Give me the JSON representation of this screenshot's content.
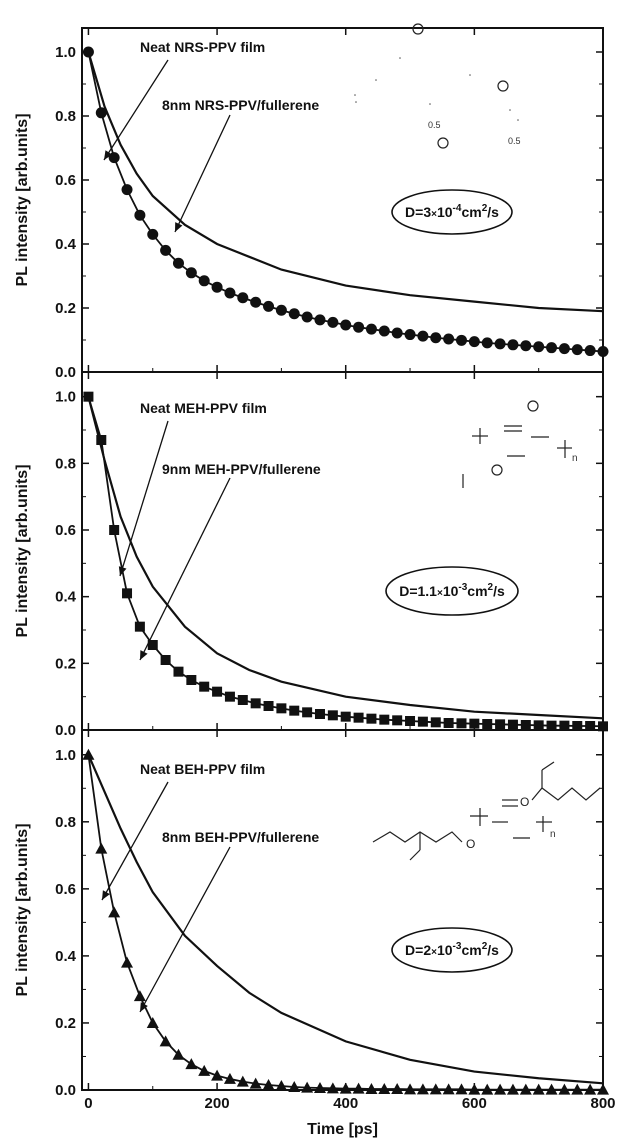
{
  "chart_data": [
    {
      "type": "line",
      "title": "",
      "xlabel": "",
      "ylabel": "PL intensity [arb.units]",
      "xlim": [
        -10,
        800
      ],
      "ylim": [
        0,
        1.05
      ],
      "xticks": [],
      "yticks": [
        "0.0",
        "0.2",
        "0.4",
        "0.6",
        "0.8",
        "1.0"
      ],
      "grid": false,
      "diffusion_label": {
        "prefix": "D=3",
        "mult": "×",
        "base": "10",
        "exp": "-4",
        "unit": "cm",
        "unit_exp": "2",
        "suffix": "/s"
      },
      "annotations": {
        "neat": "Neat NRS-PPV film",
        "blend": "8nm NRS-PPV/fullerene"
      },
      "structure_labels": [
        "0.5",
        "0.5"
      ],
      "series": [
        {
          "style": "line",
          "x": [
            0,
            25,
            50,
            75,
            100,
            150,
            200,
            250,
            300,
            400,
            500,
            600,
            700,
            800
          ],
          "values": [
            1.0,
            0.83,
            0.71,
            0.62,
            0.55,
            0.46,
            0.4,
            0.36,
            0.32,
            0.27,
            0.24,
            0.22,
            0.2,
            0.19
          ]
        },
        {
          "style": "circle",
          "x": [
            0,
            20,
            40,
            60,
            80,
            100,
            120,
            140,
            160,
            180,
            200,
            220,
            240,
            260,
            280,
            300,
            320,
            340,
            360,
            380,
            400,
            420,
            440,
            460,
            480,
            500,
            520,
            540,
            560,
            580,
            600,
            620,
            640,
            660,
            680,
            700,
            720,
            740,
            760,
            780,
            800
          ],
          "values": [
            1.0,
            0.81,
            0.67,
            0.57,
            0.49,
            0.43,
            0.38,
            0.34,
            0.31,
            0.285,
            0.265,
            0.247,
            0.232,
            0.218,
            0.205,
            0.193,
            0.182,
            0.172,
            0.163,
            0.155,
            0.147,
            0.14,
            0.134,
            0.128,
            0.122,
            0.117,
            0.112,
            0.107,
            0.103,
            0.099,
            0.095,
            0.091,
            0.088,
            0.085,
            0.082,
            0.079,
            0.076,
            0.073,
            0.07,
            0.067,
            0.064
          ]
        }
      ]
    },
    {
      "type": "line",
      "title": "",
      "xlabel": "",
      "ylabel": "PL intensity [arb.units]",
      "xlim": [
        -10,
        800
      ],
      "ylim": [
        0,
        1.05
      ],
      "xticks": [],
      "yticks": [
        "0.0",
        "0.2",
        "0.4",
        "0.6",
        "0.8",
        "1.0"
      ],
      "grid": false,
      "diffusion_label": {
        "prefix": "D=1.1",
        "mult": "×",
        "base": "10",
        "exp": "-3",
        "unit": "cm",
        "unit_exp": "2",
        "suffix": "/s"
      },
      "annotations": {
        "neat": "Neat MEH-PPV film",
        "blend": "9nm MEH-PPV/fullerene"
      },
      "structure_labels": [
        "n"
      ],
      "series": [
        {
          "style": "line",
          "x": [
            0,
            25,
            50,
            75,
            100,
            150,
            200,
            250,
            300,
            400,
            500,
            600,
            700,
            800
          ],
          "values": [
            1.0,
            0.81,
            0.64,
            0.52,
            0.43,
            0.31,
            0.23,
            0.18,
            0.145,
            0.1,
            0.075,
            0.055,
            0.045,
            0.035
          ]
        },
        {
          "style": "square",
          "x": [
            0,
            20,
            40,
            60,
            80,
            100,
            120,
            140,
            160,
            180,
            200,
            220,
            240,
            260,
            280,
            300,
            320,
            340,
            360,
            380,
            400,
            420,
            440,
            460,
            480,
            500,
            520,
            540,
            560,
            580,
            600,
            620,
            640,
            660,
            680,
            700,
            720,
            740,
            760,
            780,
            800
          ],
          "values": [
            1.0,
            0.87,
            0.6,
            0.41,
            0.31,
            0.255,
            0.21,
            0.175,
            0.15,
            0.13,
            0.115,
            0.1,
            0.09,
            0.08,
            0.072,
            0.065,
            0.058,
            0.053,
            0.048,
            0.044,
            0.04,
            0.037,
            0.034,
            0.031,
            0.029,
            0.027,
            0.025,
            0.023,
            0.021,
            0.02,
            0.019,
            0.018,
            0.017,
            0.016,
            0.015,
            0.014,
            0.013,
            0.013,
            0.012,
            0.012,
            0.011
          ]
        }
      ]
    },
    {
      "type": "line",
      "title": "",
      "xlabel": "Time [ps]",
      "ylabel": "PL intensity [arb.units]",
      "xlim": [
        -10,
        800
      ],
      "ylim": [
        0,
        1.05
      ],
      "xticks": [
        "0",
        "200",
        "400",
        "600",
        "800"
      ],
      "yticks": [
        "0.0",
        "0.2",
        "0.4",
        "0.6",
        "0.8",
        "1.0"
      ],
      "grid": false,
      "diffusion_label": {
        "prefix": "D=2",
        "mult": "×",
        "base": "10",
        "exp": "-3",
        "unit": "cm",
        "unit_exp": "2",
        "suffix": "/s"
      },
      "annotations": {
        "neat": "Neat BEH-PPV film",
        "blend": "8nm BEH-PPV/fullerene"
      },
      "structure_labels": [
        "O",
        "O",
        "n"
      ],
      "series": [
        {
          "style": "line",
          "x": [
            0,
            25,
            50,
            75,
            100,
            150,
            200,
            250,
            300,
            400,
            500,
            600,
            700,
            800
          ],
          "values": [
            1.0,
            0.89,
            0.78,
            0.68,
            0.59,
            0.46,
            0.37,
            0.29,
            0.23,
            0.145,
            0.09,
            0.055,
            0.035,
            0.02
          ]
        },
        {
          "style": "triangle",
          "x": [
            0,
            20,
            40,
            60,
            80,
            100,
            120,
            140,
            160,
            180,
            200,
            220,
            240,
            260,
            280,
            300,
            320,
            340,
            360,
            380,
            400,
            420,
            440,
            460,
            480,
            500,
            520,
            540,
            560,
            580,
            600,
            620,
            640,
            660,
            680,
            700,
            720,
            740,
            760,
            780,
            800
          ],
          "values": [
            1.0,
            0.72,
            0.53,
            0.38,
            0.28,
            0.2,
            0.145,
            0.105,
            0.077,
            0.057,
            0.043,
            0.033,
            0.025,
            0.019,
            0.015,
            0.012,
            0.009,
            0.007,
            0.006,
            0.005,
            0.004,
            0.004,
            0.003,
            0.003,
            0.003,
            0.002,
            0.002,
            0.002,
            0.002,
            0.002,
            0.001,
            0.001,
            0.001,
            0.001,
            0.001,
            0.001,
            0.001,
            0.001,
            0.001,
            0.001,
            0.001
          ]
        }
      ]
    }
  ]
}
